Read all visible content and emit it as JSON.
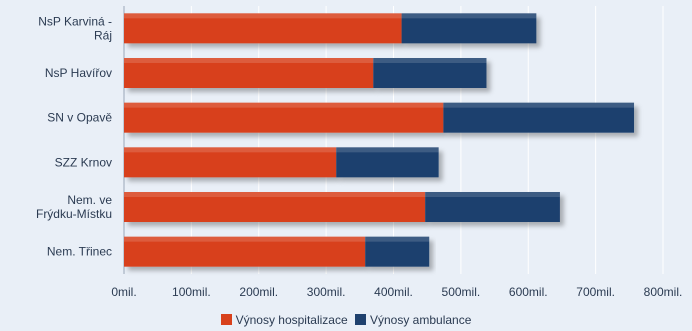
{
  "chart_data": {
    "type": "bar",
    "orientation": "horizontal",
    "stacked": true,
    "categories": [
      [
        "NsP Karviná -",
        "Ráj"
      ],
      [
        "NsP Havířov"
      ],
      [
        "SN v Opavě"
      ],
      [
        "SZZ Krnov"
      ],
      [
        "Nem. ve",
        "Frýdku-Místku"
      ],
      [
        "Nem. Třinec"
      ]
    ],
    "series": [
      {
        "name": "Výnosy hospitalizace",
        "color": "#d8411c",
        "values": [
          412,
          370,
          474,
          315,
          447,
          358
        ]
      },
      {
        "name": "Výnosy ambulance",
        "color": "#1f416e",
        "values": [
          200,
          168,
          283,
          152,
          200,
          95
        ]
      }
    ],
    "xlim": [
      0,
      800
    ],
    "xticks": [
      "0mil.",
      "100mil.",
      "200mil.",
      "300mil.",
      "400mil.",
      "500mil.",
      "600mil.",
      "700mil.",
      "800mil."
    ],
    "grid": true,
    "legend_position": "bottom",
    "title": "",
    "xlabel": "",
    "ylabel": ""
  }
}
